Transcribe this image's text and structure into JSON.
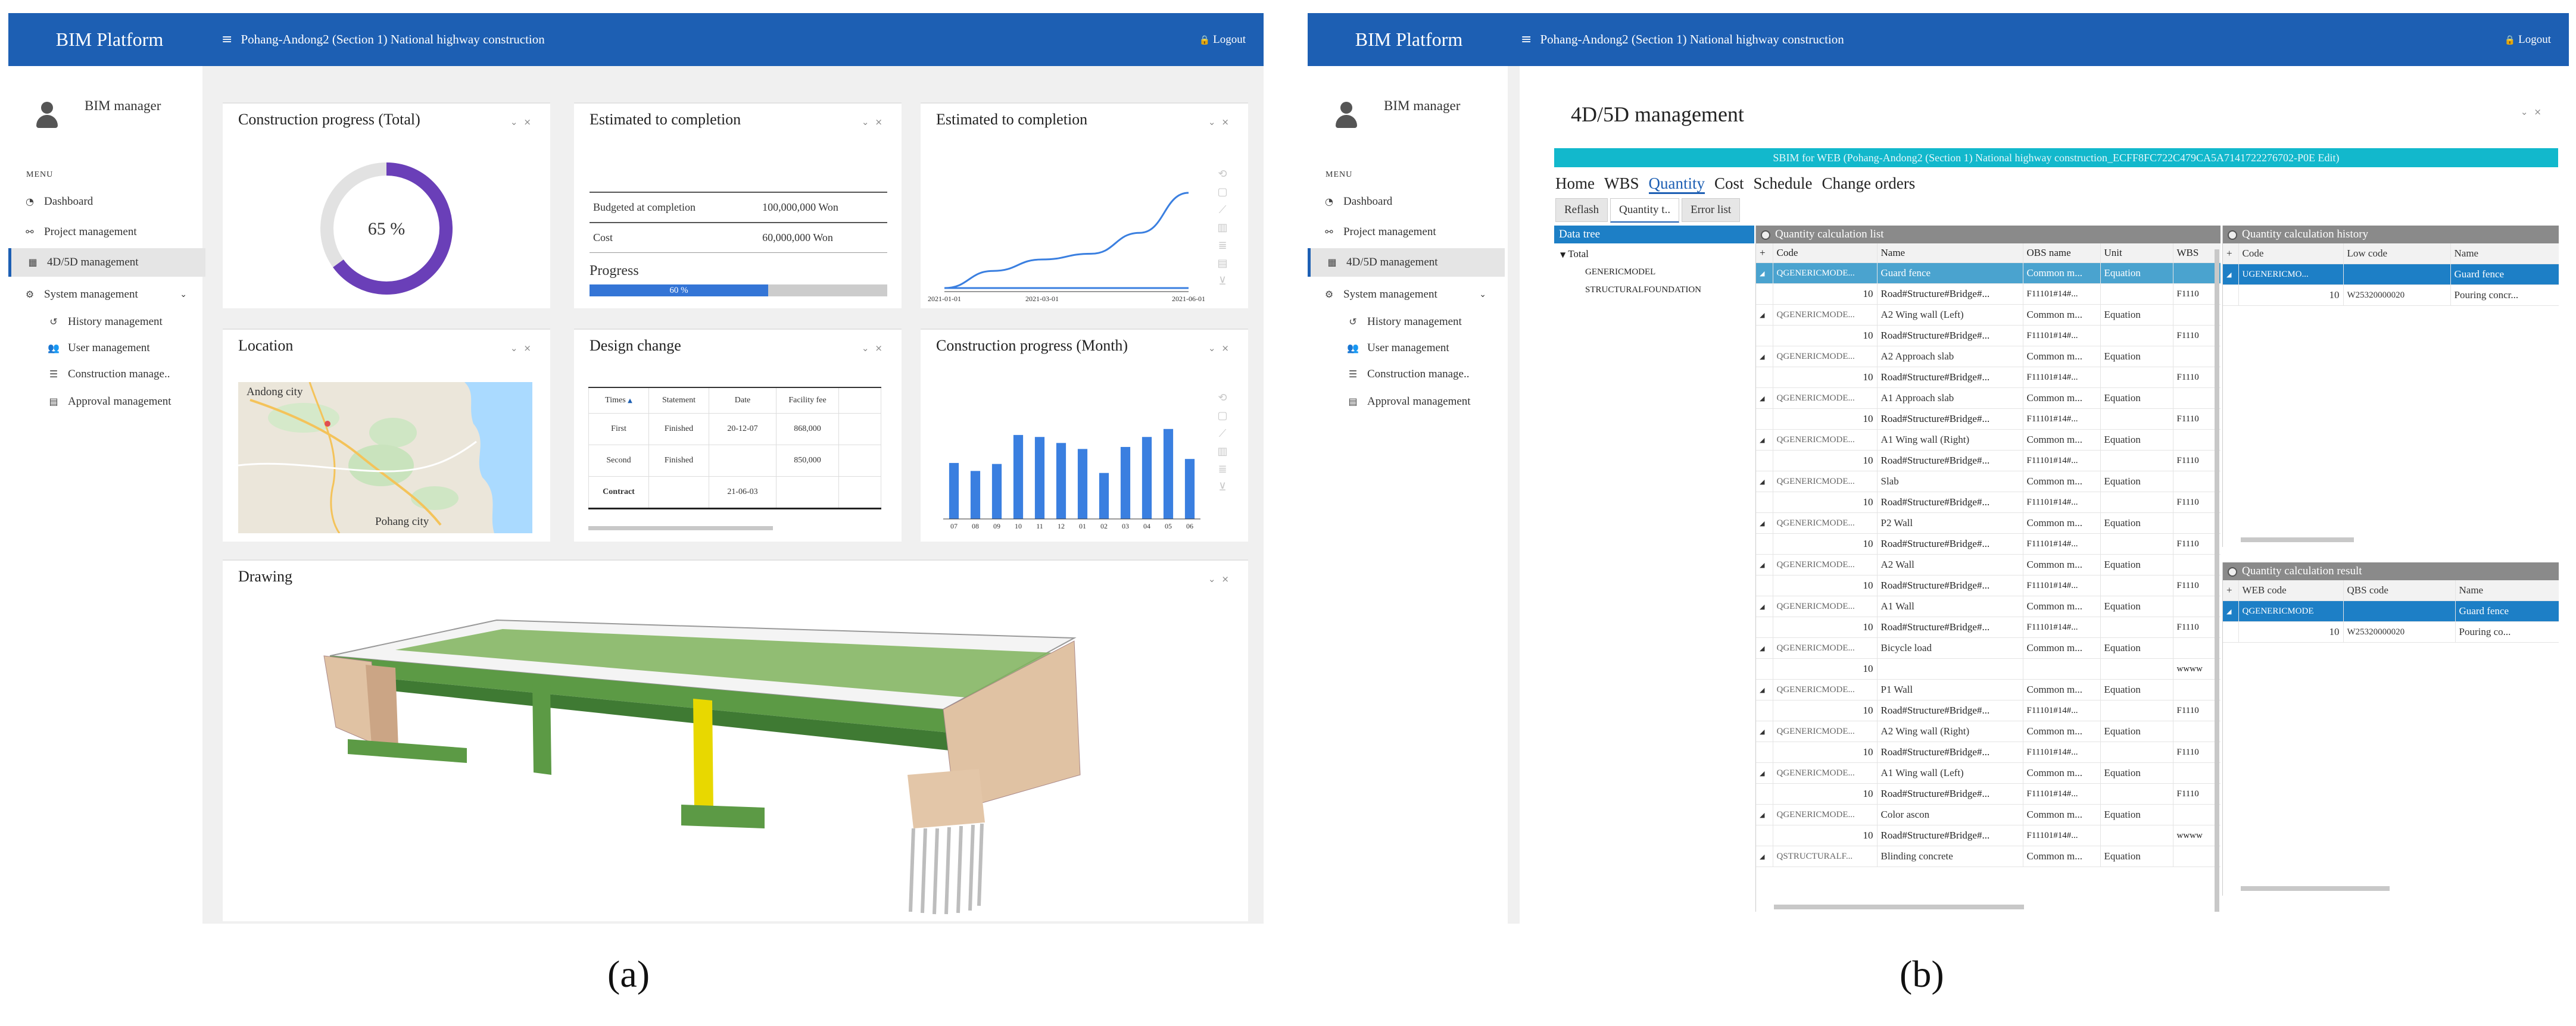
{
  "captions": {
    "a": "(a)",
    "b": "(b)"
  },
  "colors": {
    "topbar": "#1d5fb3",
    "accent": "#1d5fb3",
    "donut": "#6a3fb8",
    "bars": "#3a7fe0",
    "cyan_banner": "#12b8cc",
    "model_green": "#4a8a3a",
    "model_abutment": "#e0c2a3"
  },
  "shared": {
    "brand": "BIM Platform",
    "project": "Pohang-Andong2 (Section 1) National highway construction",
    "logout": "Logout",
    "user": "BIM manager",
    "menu_label": "MENU",
    "menu": [
      {
        "icon": "dashboard-icon",
        "label": "Dashboard"
      },
      {
        "icon": "project-icon",
        "label": "Project management"
      },
      {
        "icon": "calendar-icon",
        "label": "4D/5D management"
      },
      {
        "icon": "gear-icon",
        "label": "System management"
      },
      {
        "icon": "history-icon",
        "label": "History management"
      },
      {
        "icon": "users-icon",
        "label": "User management"
      },
      {
        "icon": "list-icon",
        "label": "Construction management"
      },
      {
        "icon": "document-icon",
        "label": "Approval management"
      }
    ],
    "menu_truncated": "Construction manage..",
    "menu_truncated_b": "Construction manage.."
  },
  "dashboard": {
    "progress_total": {
      "title": "Construction progress (Total)",
      "value": "65 %",
      "percent": 65
    },
    "estimate_table": {
      "title": "Estimated to completion",
      "rows": [
        {
          "label": "Budgeted at completion",
          "value": "100,000,000 Won"
        },
        {
          "label": "Cost",
          "value": "60,000,000 Won"
        }
      ],
      "progress_label": "Progress",
      "progress_value": "60 %",
      "progress_fraction": 0.6
    },
    "estimate_chart": {
      "title": "Estimated to completion",
      "x_ticks": [
        "2021-01-01",
        "2021-03-01",
        "2021-06-01"
      ]
    },
    "location": {
      "title": "Location",
      "city1": "Andong city",
      "city2": "Pohang city"
    },
    "design_change": {
      "title": "Design change",
      "headers": [
        "Times",
        "Statement",
        "Date",
        "Facility fee"
      ],
      "rows": [
        [
          "First",
          "Finished",
          "20-12-07",
          "868,000"
        ],
        [
          "Second",
          "Finished",
          "",
          "850,000"
        ],
        [
          "Contract",
          "",
          "21-06-03",
          ""
        ]
      ]
    },
    "monthly": {
      "title": "Construction progress (Month)"
    },
    "drawing": {
      "title": "Drawing"
    }
  },
  "chart_data": [
    {
      "type": "line",
      "title": "Estimated to completion",
      "x": [
        "2021-01-01",
        "2021-02-01",
        "2021-03-01",
        "2021-04-01",
        "2021-05-01",
        "2021-06-01"
      ],
      "series": [
        {
          "values": [
            0,
            18,
            30,
            36,
            58,
            100
          ]
        },
        {
          "values": [
            0,
            0,
            0,
            0,
            0,
            0
          ]
        }
      ],
      "ylim": [
        0,
        100
      ],
      "grid": false
    },
    {
      "type": "bar",
      "title": "Construction progress (Month)",
      "categories": [
        "07",
        "08",
        "09",
        "10",
        "11",
        "12",
        "01",
        "02",
        "03",
        "04",
        "05",
        "06"
      ],
      "values": [
        56,
        48,
        55,
        84,
        82,
        76,
        70,
        46,
        72,
        82,
        90,
        60
      ],
      "ylim": [
        0,
        100
      ],
      "grid": false
    }
  ],
  "mgmt": {
    "title": "4D/5D management",
    "banner": "SBIM for WEB (Pohang-Andong2 (Section 1) National highway construction_ECFF8FC722C479CA5A7141722276702-P0E Edit)",
    "tabs": [
      "Home",
      "WBS",
      "Quantity",
      "Cost",
      "Schedule",
      "Change orders"
    ],
    "tools": [
      "Reflash",
      "Quantity t..",
      "Error list"
    ],
    "tree": {
      "header": "Data tree",
      "root": "Total",
      "children": [
        "GENERICMODEL",
        "STRUCTURALFOUNDATION"
      ]
    },
    "list": {
      "header": "Quantity calculation list",
      "columns": [
        "Code",
        "Name",
        "OBS name",
        "Unit",
        "WBS"
      ],
      "rows": [
        {
          "code": "QGENERICMODE...",
          "name": "Guard fence",
          "obs": "Common m...",
          "unit": "Equation",
          "sub": "Road#Structure#Bridge#...",
          "wbs": "F1110"
        },
        {
          "code": "QGENERICMODE...",
          "name": "A2 Wing wall (Left)",
          "obs": "Common m...",
          "unit": "Equation",
          "sub": "Road#Structure#Bridge#...",
          "wbs": "F1110"
        },
        {
          "code": "QGENERICMODE...",
          "name": "A2 Approach slab",
          "obs": "Common m...",
          "unit": "Equation",
          "sub": "Road#Structure#Bridge#...",
          "wbs": "F1110"
        },
        {
          "code": "QGENERICMODE...",
          "name": "A1 Approach slab",
          "obs": "Common m...",
          "unit": "Equation",
          "sub": "Road#Structure#Bridge#...",
          "wbs": "F1110"
        },
        {
          "code": "QGENERICMODE...",
          "name": "A1 Wing wall (Right)",
          "obs": "Common m...",
          "unit": "Equation",
          "sub": "Road#Structure#Bridge#...",
          "wbs": "F1110"
        },
        {
          "code": "QGENERICMODE...",
          "name": "Slab",
          "obs": "Common m...",
          "unit": "Equation",
          "sub": "Road#Structure#Bridge#...",
          "wbs": "F1110"
        },
        {
          "code": "QGENERICMODE...",
          "name": "P2 Wall",
          "obs": "Common m...",
          "unit": "Equation",
          "sub": "Road#Structure#Bridge#...",
          "wbs": "F1110"
        },
        {
          "code": "QGENERICMODE...",
          "name": "A2 Wall",
          "obs": "Common m...",
          "unit": "Equation",
          "sub": "Road#Structure#Bridge#...",
          "wbs": "F1110"
        },
        {
          "code": "QGENERICMODE...",
          "name": "A1 Wall",
          "obs": "Common m...",
          "unit": "Equation",
          "sub": "Road#Structure#Bridge#...",
          "wbs": "F1110"
        },
        {
          "code": "QGENERICMODE...",
          "name": "Bicycle load",
          "obs": "Common m...",
          "unit": "Equation",
          "sub": "",
          "wbs": "wwww"
        },
        {
          "code": "QGENERICMODE...",
          "name": "P1 Wall",
          "obs": "Common m...",
          "unit": "Equation",
          "sub": "Road#Structure#Bridge#...",
          "wbs": "F1110"
        },
        {
          "code": "QGENERICMODE...",
          "name": "A2 Wing wall (Right)",
          "obs": "Common m...",
          "unit": "Equation",
          "sub": "Road#Structure#Bridge#...",
          "wbs": "F1110"
        },
        {
          "code": "QGENERICMODE...",
          "name": "A1 Wing wall (Left)",
          "obs": "Common m...",
          "unit": "Equation",
          "sub": "Road#Structure#Bridge#...",
          "wbs": "F1110"
        },
        {
          "code": "QGENERICMODE...",
          "name": "Color ascon",
          "obs": "Common m...",
          "unit": "Equation",
          "sub": "Road#Structure#Bridge#...",
          "wbs": "wwww"
        },
        {
          "code": "QSTRUCTURALF...",
          "name": "Blinding concrete",
          "obs": "Common m...",
          "unit": "Equation",
          "sub": "",
          "wbs": ""
        }
      ],
      "sub_qty": "10",
      "obs_sub": "F11101#14#..."
    },
    "history": {
      "header": "Quantity calculation history",
      "columns": [
        "Code",
        "Low code",
        "Name"
      ],
      "row": {
        "code": "UGENERICMO...",
        "low": "",
        "name": "Guard fence"
      },
      "sub": {
        "qty": "10",
        "low": "W25320000020",
        "name": "Pouring concr..."
      }
    },
    "result": {
      "header": "Quantity calculation result",
      "columns": [
        "WEB code",
        "QBS code",
        "Name"
      ],
      "row": {
        "code": "QGENERICMODE",
        "qbs": "",
        "name": "Guard fence"
      },
      "sub": {
        "qty": "10",
        "qbs": "W25320000020",
        "name": "Pouring co..."
      }
    }
  }
}
